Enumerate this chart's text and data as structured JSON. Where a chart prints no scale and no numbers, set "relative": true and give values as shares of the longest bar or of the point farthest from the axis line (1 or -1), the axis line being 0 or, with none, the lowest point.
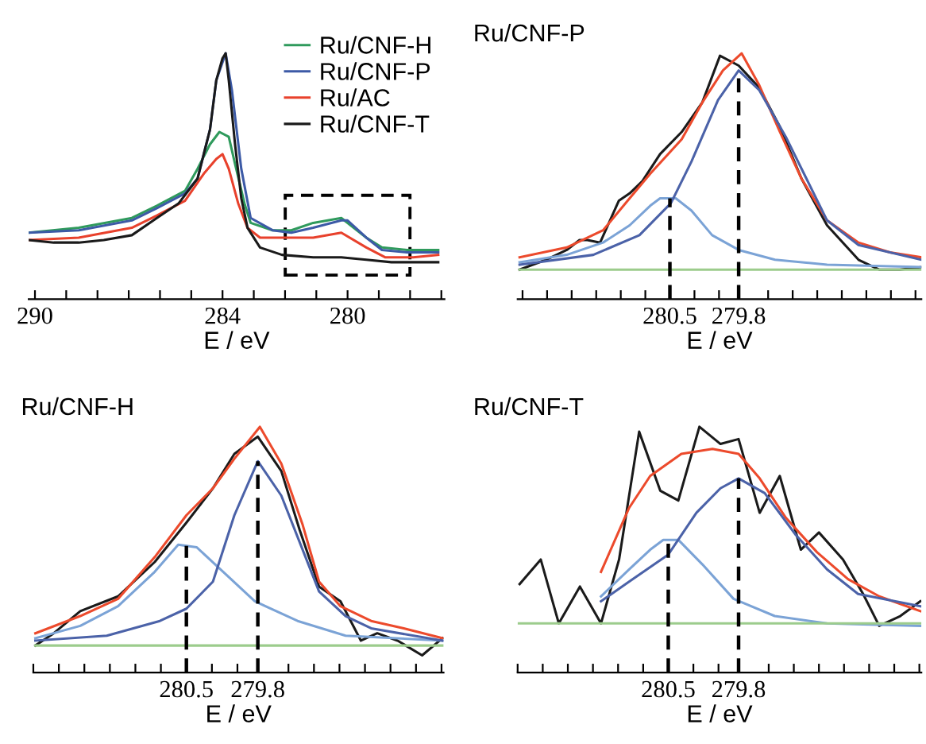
{
  "chart_data": [
    {
      "type": "line",
      "relative": true,
      "xlabel": "E / eV",
      "xlim": [
        290.2,
        276.9
      ],
      "tick_labels": "x",
      "legend": "top right",
      "xticks": [
        {
          "value": 290,
          "label": "290"
        },
        {
          "value": 289,
          "label": null
        },
        {
          "value": 288,
          "label": null
        },
        {
          "value": 287,
          "label": null
        },
        {
          "value": 286,
          "label": null
        },
        {
          "value": 285,
          "label": null
        },
        {
          "value": 284,
          "label": "284"
        },
        {
          "value": 283,
          "label": null
        },
        {
          "value": 282,
          "label": null
        },
        {
          "value": 281,
          "label": null
        },
        {
          "value": 280,
          "label": "280"
        },
        {
          "value": 279,
          "label": null
        },
        {
          "value": 278,
          "label": null
        },
        {
          "value": 277,
          "label": null
        }
      ],
      "series": [
        {
          "name": "Ru/CNF-H",
          "color": "#2f9a5c",
          "x": [
            290.2,
            288.6,
            286.9,
            286.1,
            285.2,
            284.8,
            284.4,
            284.1,
            283.8,
            283.6,
            283.3,
            283.1,
            282.4,
            281.8,
            281.1,
            280.2,
            279.4,
            278.9,
            278.1,
            277.1
          ],
          "values": [
            0.27,
            0.29,
            0.33,
            0.38,
            0.44,
            0.53,
            0.63,
            0.68,
            0.66,
            0.55,
            0.39,
            0.31,
            0.28,
            0.28,
            0.31,
            0.33,
            0.25,
            0.21,
            0.2,
            0.2
          ]
        },
        {
          "name": "Ru/CNF-P",
          "color": "#3c5aa6",
          "x": [
            290.2,
            288.6,
            286.9,
            286.1,
            285.2,
            284.8,
            284.4,
            284.2,
            283.9,
            283.7,
            283.4,
            283.1,
            282.4,
            281.8,
            281.1,
            280.2,
            280.0,
            279.4,
            278.9,
            278.1,
            277.1
          ],
          "values": [
            0.27,
            0.28,
            0.32,
            0.37,
            0.43,
            0.49,
            0.69,
            0.89,
            1,
            0.85,
            0.53,
            0.33,
            0.28,
            0.27,
            0.29,
            0.32,
            0.32,
            0.25,
            0.2,
            0.19,
            0.19
          ]
        },
        {
          "name": "Ru/AC",
          "color": "#e8412c",
          "x": [
            290.2,
            288.6,
            286.9,
            286.1,
            285.2,
            284.6,
            284.2,
            284.0,
            283.8,
            283.5,
            283.2,
            282.8,
            281.8,
            281.1,
            280.2,
            279.4,
            278.8,
            277.9,
            277.1
          ],
          "values": [
            0.24,
            0.25,
            0.29,
            0.34,
            0.4,
            0.51,
            0.57,
            0.59,
            0.53,
            0.39,
            0.29,
            0.25,
            0.25,
            0.25,
            0.27,
            0.21,
            0.17,
            0.17,
            0.18
          ]
        },
        {
          "name": "Ru/CNF-T",
          "color": "#1a1a1a",
          "x": [
            290.2,
            289.4,
            288.6,
            287.8,
            286.9,
            286.1,
            285.4,
            284.8,
            284.4,
            284.2,
            284.0,
            283.9,
            283.8,
            283.6,
            283.4,
            283.2,
            282.8,
            282.1,
            281.1,
            280.2,
            279.4,
            278.6,
            277.8,
            277.1
          ],
          "values": [
            0.24,
            0.23,
            0.23,
            0.24,
            0.26,
            0.33,
            0.39,
            0.49,
            0.69,
            0.89,
            0.98,
            1,
            0.89,
            0.63,
            0.41,
            0.29,
            0.21,
            0.18,
            0.17,
            0.17,
            0.16,
            0.15,
            0.15,
            0.15
          ]
        }
      ]
    },
    {
      "type": "line",
      "relative": true,
      "title": "Ru/CNF-P",
      "xlabel": "E / eV",
      "xlim": [
        282.05,
        277.94
      ],
      "tick_labels": "x",
      "xticks": [
        {
          "value": 282,
          "label": null
        },
        {
          "value": 281.75,
          "label": null
        },
        {
          "value": 281.5,
          "label": null
        },
        {
          "value": 281.25,
          "label": null
        },
        {
          "value": 281,
          "label": null
        },
        {
          "value": 280.75,
          "label": null
        },
        {
          "value": 280.5,
          "label": "280.5"
        },
        {
          "value": 280.25,
          "label": null
        },
        {
          "value": 280,
          "label": null
        },
        {
          "value": 279.8,
          "label": "279.8"
        },
        {
          "value": 279.5,
          "label": null
        },
        {
          "value": 279.25,
          "label": null
        },
        {
          "value": 279,
          "label": null
        },
        {
          "value": 278.75,
          "label": null
        },
        {
          "value": 278.5,
          "label": null
        },
        {
          "value": 278.25,
          "label": null
        },
        {
          "value": 278,
          "label": null
        }
      ],
      "ref_lines": [
        {
          "axis": "x",
          "value": 280.5,
          "line_style": "dashed",
          "color": "#000000"
        },
        {
          "axis": "x",
          "value": 279.8,
          "line_style": "dashed",
          "color": "#000000"
        }
      ],
      "series": [
        {
          "color": "#1a1a1a",
          "x": [
            282.03,
            281.76,
            281.55,
            281.42,
            281.34,
            281.21,
            281.02,
            280.91,
            280.78,
            280.6,
            280.38,
            280.17,
            279.99,
            279.8,
            279.59,
            279.38,
            279.16,
            278.9,
            278.58,
            278.37,
            278.16,
            277.94
          ],
          "values": [
            0.12,
            0.16,
            0.2,
            0.24,
            0.24,
            0.23,
            0.4,
            0.43,
            0.48,
            0.59,
            0.68,
            0.8,
            0.99,
            0.95,
            0.86,
            0.7,
            0.49,
            0.3,
            0.16,
            0.12,
            0.12,
            0.13
          ]
        },
        {
          "color": "#ec4a2c",
          "x": [
            282.03,
            281.55,
            281.18,
            280.91,
            280.7,
            280.38,
            280.17,
            279.96,
            279.77,
            279.59,
            279.38,
            279.16,
            278.9,
            278.58,
            278.26,
            277.94
          ],
          "values": [
            0.17,
            0.21,
            0.28,
            0.41,
            0.51,
            0.65,
            0.8,
            0.93,
            1,
            0.87,
            0.68,
            0.49,
            0.32,
            0.23,
            0.19,
            0.17
          ]
        },
        {
          "color": "#7ba3d6",
          "x": [
            282.03,
            281.55,
            281.18,
            280.91,
            280.7,
            280.6,
            280.44,
            280.28,
            280.07,
            279.8,
            279.43,
            278.9,
            277.94
          ],
          "values": [
            0.15,
            0.18,
            0.23,
            0.3,
            0.38,
            0.41,
            0.41,
            0.36,
            0.26,
            0.2,
            0.16,
            0.14,
            0.13
          ]
        },
        {
          "color": "#4b62a8",
          "x": [
            282.03,
            281.28,
            280.81,
            280.49,
            280.28,
            280.01,
            279.8,
            279.59,
            279.32,
            279.11,
            278.9,
            278.58,
            277.94
          ],
          "values": [
            0.14,
            0.18,
            0.26,
            0.39,
            0.56,
            0.81,
            0.93,
            0.85,
            0.66,
            0.49,
            0.32,
            0.22,
            0.16
          ]
        },
        {
          "color": "#9ccc8c",
          "x": [
            282.03,
            277.94
          ],
          "values": [
            0.12,
            0.12
          ]
        }
      ]
    },
    {
      "type": "line",
      "relative": true,
      "title": "Ru/CNF-H",
      "xlabel": "E / eV",
      "xlim": [
        282,
        277.98
      ],
      "tick_labels": "x",
      "xticks": [
        {
          "value": 282,
          "label": null
        },
        {
          "value": 281.75,
          "label": null
        },
        {
          "value": 281.5,
          "label": null
        },
        {
          "value": 281.25,
          "label": null
        },
        {
          "value": 281,
          "label": null
        },
        {
          "value": 280.75,
          "label": null
        },
        {
          "value": 280.5,
          "label": "280.5"
        },
        {
          "value": 280.25,
          "label": null
        },
        {
          "value": 280,
          "label": null
        },
        {
          "value": 279.8,
          "label": "279.8"
        },
        {
          "value": 279.5,
          "label": null
        },
        {
          "value": 279.25,
          "label": null
        },
        {
          "value": 279,
          "label": null
        },
        {
          "value": 278.75,
          "label": null
        },
        {
          "value": 278.5,
          "label": null
        },
        {
          "value": 278.25,
          "label": null
        },
        {
          "value": 278,
          "label": null
        }
      ],
      "ref_lines": [
        {
          "axis": "x",
          "value": 280.5,
          "line_style": "dashed",
          "color": "#000000"
        },
        {
          "axis": "x",
          "value": 279.8,
          "line_style": "dashed",
          "color": "#000000"
        }
      ],
      "series": [
        {
          "color": "#1a1a1a",
          "x": [
            281.98,
            281.8,
            281.54,
            281.17,
            280.81,
            280.5,
            280.24,
            280.03,
            279.8,
            279.57,
            279.39,
            279.2,
            278.99,
            278.79,
            278.63,
            278.43,
            278.19,
            277.99
          ],
          "values": [
            0.11,
            0.16,
            0.25,
            0.31,
            0.45,
            0.61,
            0.75,
            0.89,
            0.96,
            0.82,
            0.58,
            0.35,
            0.29,
            0.13,
            0.16,
            0.13,
            0.07,
            0.14
          ]
        },
        {
          "color": "#ec4a2c",
          "x": [
            281.98,
            281.54,
            281.17,
            280.81,
            280.5,
            280.24,
            280.03,
            279.78,
            279.57,
            279.36,
            279.2,
            278.99,
            278.69,
            278.37,
            277.99
          ],
          "values": [
            0.16,
            0.23,
            0.3,
            0.47,
            0.64,
            0.75,
            0.87,
            1,
            0.85,
            0.6,
            0.37,
            0.27,
            0.21,
            0.18,
            0.14
          ]
        },
        {
          "color": "#7ba3d6",
          "x": [
            281.98,
            281.54,
            281.17,
            280.81,
            280.58,
            280.4,
            280.14,
            279.83,
            279.41,
            278.94,
            277.99
          ],
          "values": [
            0.14,
            0.19,
            0.27,
            0.41,
            0.52,
            0.51,
            0.41,
            0.29,
            0.21,
            0.15,
            0.13
          ]
        },
        {
          "color": "#4b62a8",
          "x": [
            281.98,
            281.28,
            280.76,
            280.5,
            280.24,
            280.03,
            279.8,
            279.57,
            279.2,
            278.94,
            278.69,
            277.99
          ],
          "values": [
            0.13,
            0.15,
            0.21,
            0.26,
            0.37,
            0.64,
            0.86,
            0.72,
            0.33,
            0.23,
            0.18,
            0.13
          ]
        },
        {
          "color": "#9ccc8c",
          "x": [
            281.98,
            277.99
          ],
          "values": [
            0.11,
            0.11
          ]
        }
      ]
    },
    {
      "type": "line",
      "relative": true,
      "title": "Ru/CNF-T",
      "xlabel": "E / eV",
      "xlim": [
        282,
        277.98
      ],
      "tick_labels": "x",
      "xticks": [
        {
          "value": 282,
          "label": null
        },
        {
          "value": 281.75,
          "label": null
        },
        {
          "value": 281.5,
          "label": null
        },
        {
          "value": 281.25,
          "label": null
        },
        {
          "value": 281,
          "label": null
        },
        {
          "value": 280.75,
          "label": null
        },
        {
          "value": 280.5,
          "label": "280.5"
        },
        {
          "value": 280.25,
          "label": null
        },
        {
          "value": 280,
          "label": null
        },
        {
          "value": 279.8,
          "label": "279.8"
        },
        {
          "value": 279.5,
          "label": null
        },
        {
          "value": 279.25,
          "label": null
        },
        {
          "value": 279,
          "label": null
        },
        {
          "value": 278.75,
          "label": null
        },
        {
          "value": 278.5,
          "label": null
        },
        {
          "value": 278.25,
          "label": null
        },
        {
          "value": 278,
          "label": null
        }
      ],
      "ref_lines": [
        {
          "axis": "x",
          "value": 280.5,
          "line_style": "dashed",
          "color": "#000000"
        },
        {
          "axis": "x",
          "value": 279.8,
          "line_style": "dashed",
          "color": "#000000"
        }
      ],
      "series": [
        {
          "color": "#1a1a1a",
          "x": [
            281.98,
            281.77,
            281.59,
            281.38,
            281.17,
            280.99,
            280.79,
            280.58,
            280.4,
            280.19,
            279.98,
            279.8,
            279.59,
            279.39,
            279.18,
            279.0,
            278.76,
            278.56,
            278.4,
            278.19,
            277.99
          ],
          "values": [
            0.36,
            0.46,
            0.2,
            0.35,
            0.2,
            0.46,
            0.98,
            0.74,
            0.7,
            1,
            0.93,
            0.95,
            0.65,
            0.8,
            0.5,
            0.57,
            0.46,
            0.32,
            0.19,
            0.23,
            0.29
          ]
        },
        {
          "color": "#ec4a2c",
          "x": [
            281.17,
            280.89,
            280.68,
            280.37,
            280.06,
            279.8,
            279.59,
            279.33,
            279.02,
            278.71,
            278.4,
            277.99
          ],
          "values": [
            0.41,
            0.67,
            0.8,
            0.89,
            0.91,
            0.89,
            0.79,
            0.63,
            0.49,
            0.38,
            0.31,
            0.25
          ]
        },
        {
          "color": "#7ba3d6",
          "x": [
            281.17,
            280.89,
            280.68,
            280.55,
            280.4,
            280.16,
            279.85,
            279.44,
            278.92,
            277.99
          ],
          "values": [
            0.31,
            0.42,
            0.5,
            0.54,
            0.54,
            0.44,
            0.3,
            0.23,
            0.2,
            0.19
          ]
        },
        {
          "color": "#4b62a8",
          "x": [
            281.17,
            280.89,
            280.5,
            280.22,
            279.98,
            279.8,
            279.54,
            279.23,
            278.92,
            278.61,
            277.99
          ],
          "values": [
            0.29,
            0.37,
            0.48,
            0.65,
            0.75,
            0.79,
            0.73,
            0.56,
            0.42,
            0.32,
            0.27
          ]
        },
        {
          "color": "#9ccc8c",
          "x": [
            281.99,
            277.99
          ],
          "values": [
            0.2,
            0.2
          ]
        }
      ]
    }
  ]
}
